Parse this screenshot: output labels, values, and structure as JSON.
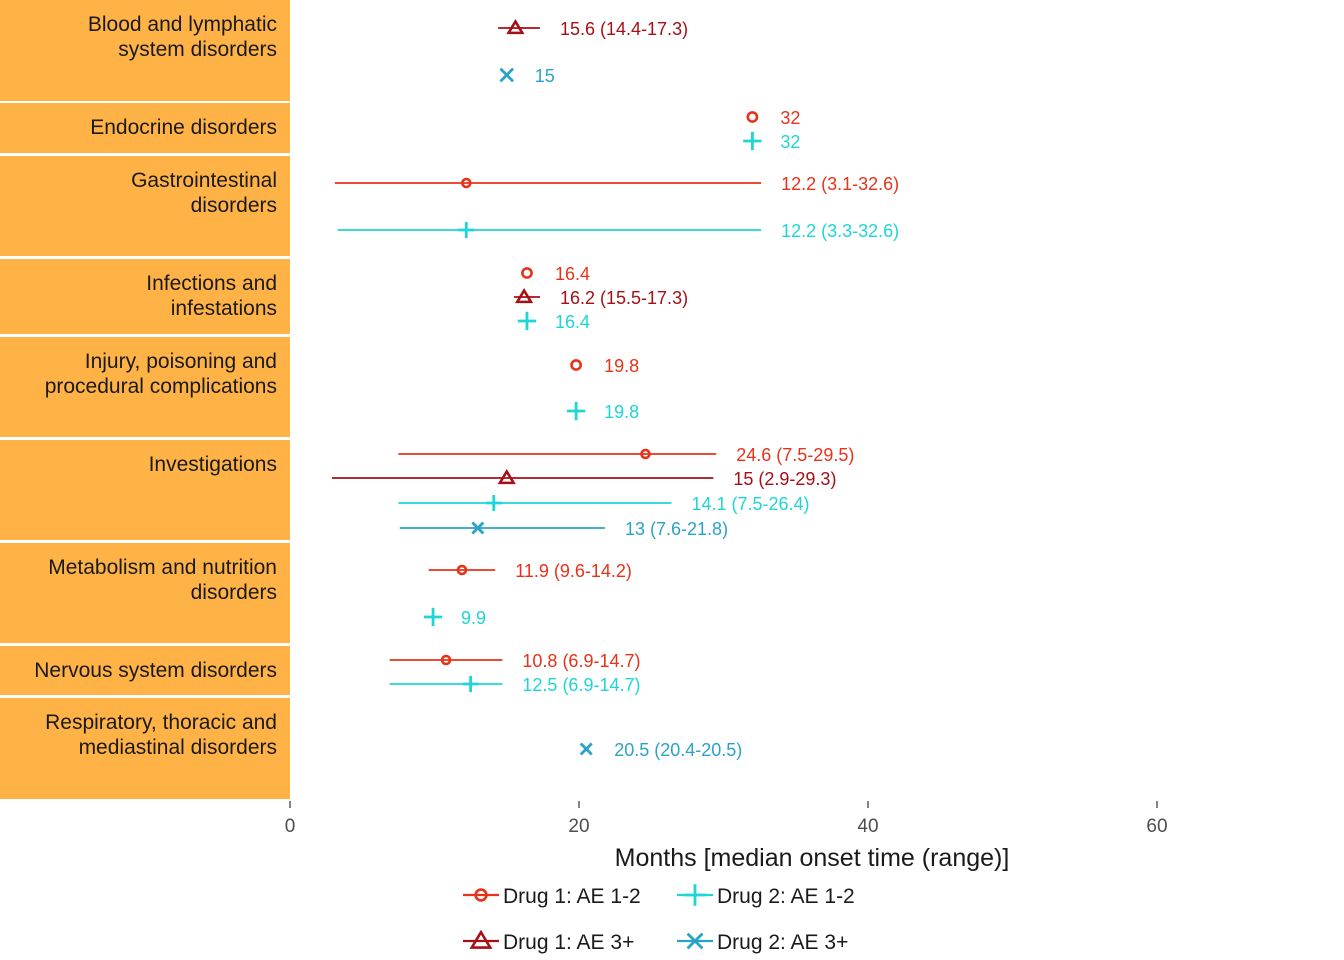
{
  "chart_data": {
    "type": "range-dot",
    "xlabel": "Months [median onset time (range)]",
    "xlim": [
      0,
      70
    ],
    "xticks": [
      0,
      20,
      40,
      60
    ],
    "series": [
      {
        "key": "d1_12",
        "name": "Drug 1: AE 1-2",
        "color": "#e8321a",
        "marker": "circle"
      },
      {
        "key": "d1_3",
        "name": "Drug 1: AE 3+",
        "color": "#a50f15",
        "marker": "triangle"
      },
      {
        "key": "d2_12",
        "name": "Drug 2: AE 1-2",
        "color": "#1ed6d6",
        "marker": "plus"
      },
      {
        "key": "d2_3",
        "name": "Drug 2: AE 3+",
        "color": "#2aa3c9",
        "marker": "x"
      }
    ],
    "categories": [
      {
        "label": [
          "Blood and lymphatic",
          "system disorders"
        ],
        "points": [
          {
            "series": "d1_3",
            "median": 15.6,
            "low": 14.4,
            "high": 17.3,
            "label": "15.6 (14.4-17.3)"
          },
          {
            "series": "d2_3",
            "median": 15,
            "low": null,
            "high": null,
            "label": "15"
          }
        ]
      },
      {
        "label": [
          "Endocrine disorders"
        ],
        "points": [
          {
            "series": "d1_12",
            "median": 32,
            "low": null,
            "high": null,
            "label": "32"
          },
          {
            "series": "d2_12",
            "median": 32,
            "low": null,
            "high": null,
            "label": "32"
          }
        ]
      },
      {
        "label": [
          "Gastrointestinal",
          "disorders"
        ],
        "points": [
          {
            "series": "d1_12",
            "median": 12.2,
            "low": 3.1,
            "high": 32.6,
            "label": "12.2 (3.1-32.6)"
          },
          {
            "series": "d2_12",
            "median": 12.2,
            "low": 3.3,
            "high": 32.6,
            "label": "12.2 (3.3-32.6)"
          }
        ]
      },
      {
        "label": [
          "Infections and",
          "infestations"
        ],
        "points": [
          {
            "series": "d1_12",
            "median": 16.4,
            "low": null,
            "high": null,
            "label": "16.4"
          },
          {
            "series": "d1_3",
            "median": 16.2,
            "low": 15.5,
            "high": 17.3,
            "label": "16.2 (15.5-17.3)"
          },
          {
            "series": "d2_12",
            "median": 16.4,
            "low": null,
            "high": null,
            "label": "16.4"
          }
        ]
      },
      {
        "label": [
          "Injury, poisoning and",
          "procedural complications"
        ],
        "points": [
          {
            "series": "d1_12",
            "median": 19.8,
            "low": null,
            "high": null,
            "label": "19.8"
          },
          {
            "series": "d2_12",
            "median": 19.8,
            "low": null,
            "high": null,
            "label": "19.8"
          }
        ]
      },
      {
        "label": [
          "Investigations"
        ],
        "points": [
          {
            "series": "d1_12",
            "median": 24.6,
            "low": 7.5,
            "high": 29.5,
            "label": "24.6 (7.5-29.5)"
          },
          {
            "series": "d1_3",
            "median": 15,
            "low": 2.9,
            "high": 29.3,
            "label": "15 (2.9-29.3)"
          },
          {
            "series": "d2_12",
            "median": 14.1,
            "low": 7.5,
            "high": 26.4,
            "label": "14.1 (7.5-26.4)"
          },
          {
            "series": "d2_3",
            "median": 13,
            "low": 7.6,
            "high": 21.8,
            "label": "13 (7.6-21.8)"
          }
        ]
      },
      {
        "label": [
          "Metabolism and nutrition",
          "disorders"
        ],
        "points": [
          {
            "series": "d1_12",
            "median": 11.9,
            "low": 9.6,
            "high": 14.2,
            "label": "11.9 (9.6-14.2)"
          },
          {
            "series": "d2_12",
            "median": 9.9,
            "low": null,
            "high": null,
            "label": "9.9"
          }
        ]
      },
      {
        "label": [
          "Nervous system disorders"
        ],
        "points": [
          {
            "series": "d1_12",
            "median": 10.8,
            "low": 6.9,
            "high": 14.7,
            "label": "10.8 (6.9-14.7)"
          },
          {
            "series": "d2_12",
            "median": 12.5,
            "low": 6.9,
            "high": 14.7,
            "label": "12.5 (6.9-14.7)"
          }
        ]
      },
      {
        "label": [
          "Respiratory, thoracic and",
          "mediastinal disorders"
        ],
        "points": [
          {
            "series": "d2_3",
            "median": 20.5,
            "low": 20.4,
            "high": 20.5,
            "label": "20.5 (20.4-20.5)"
          }
        ]
      }
    ],
    "panel_color": "#ffb347"
  }
}
